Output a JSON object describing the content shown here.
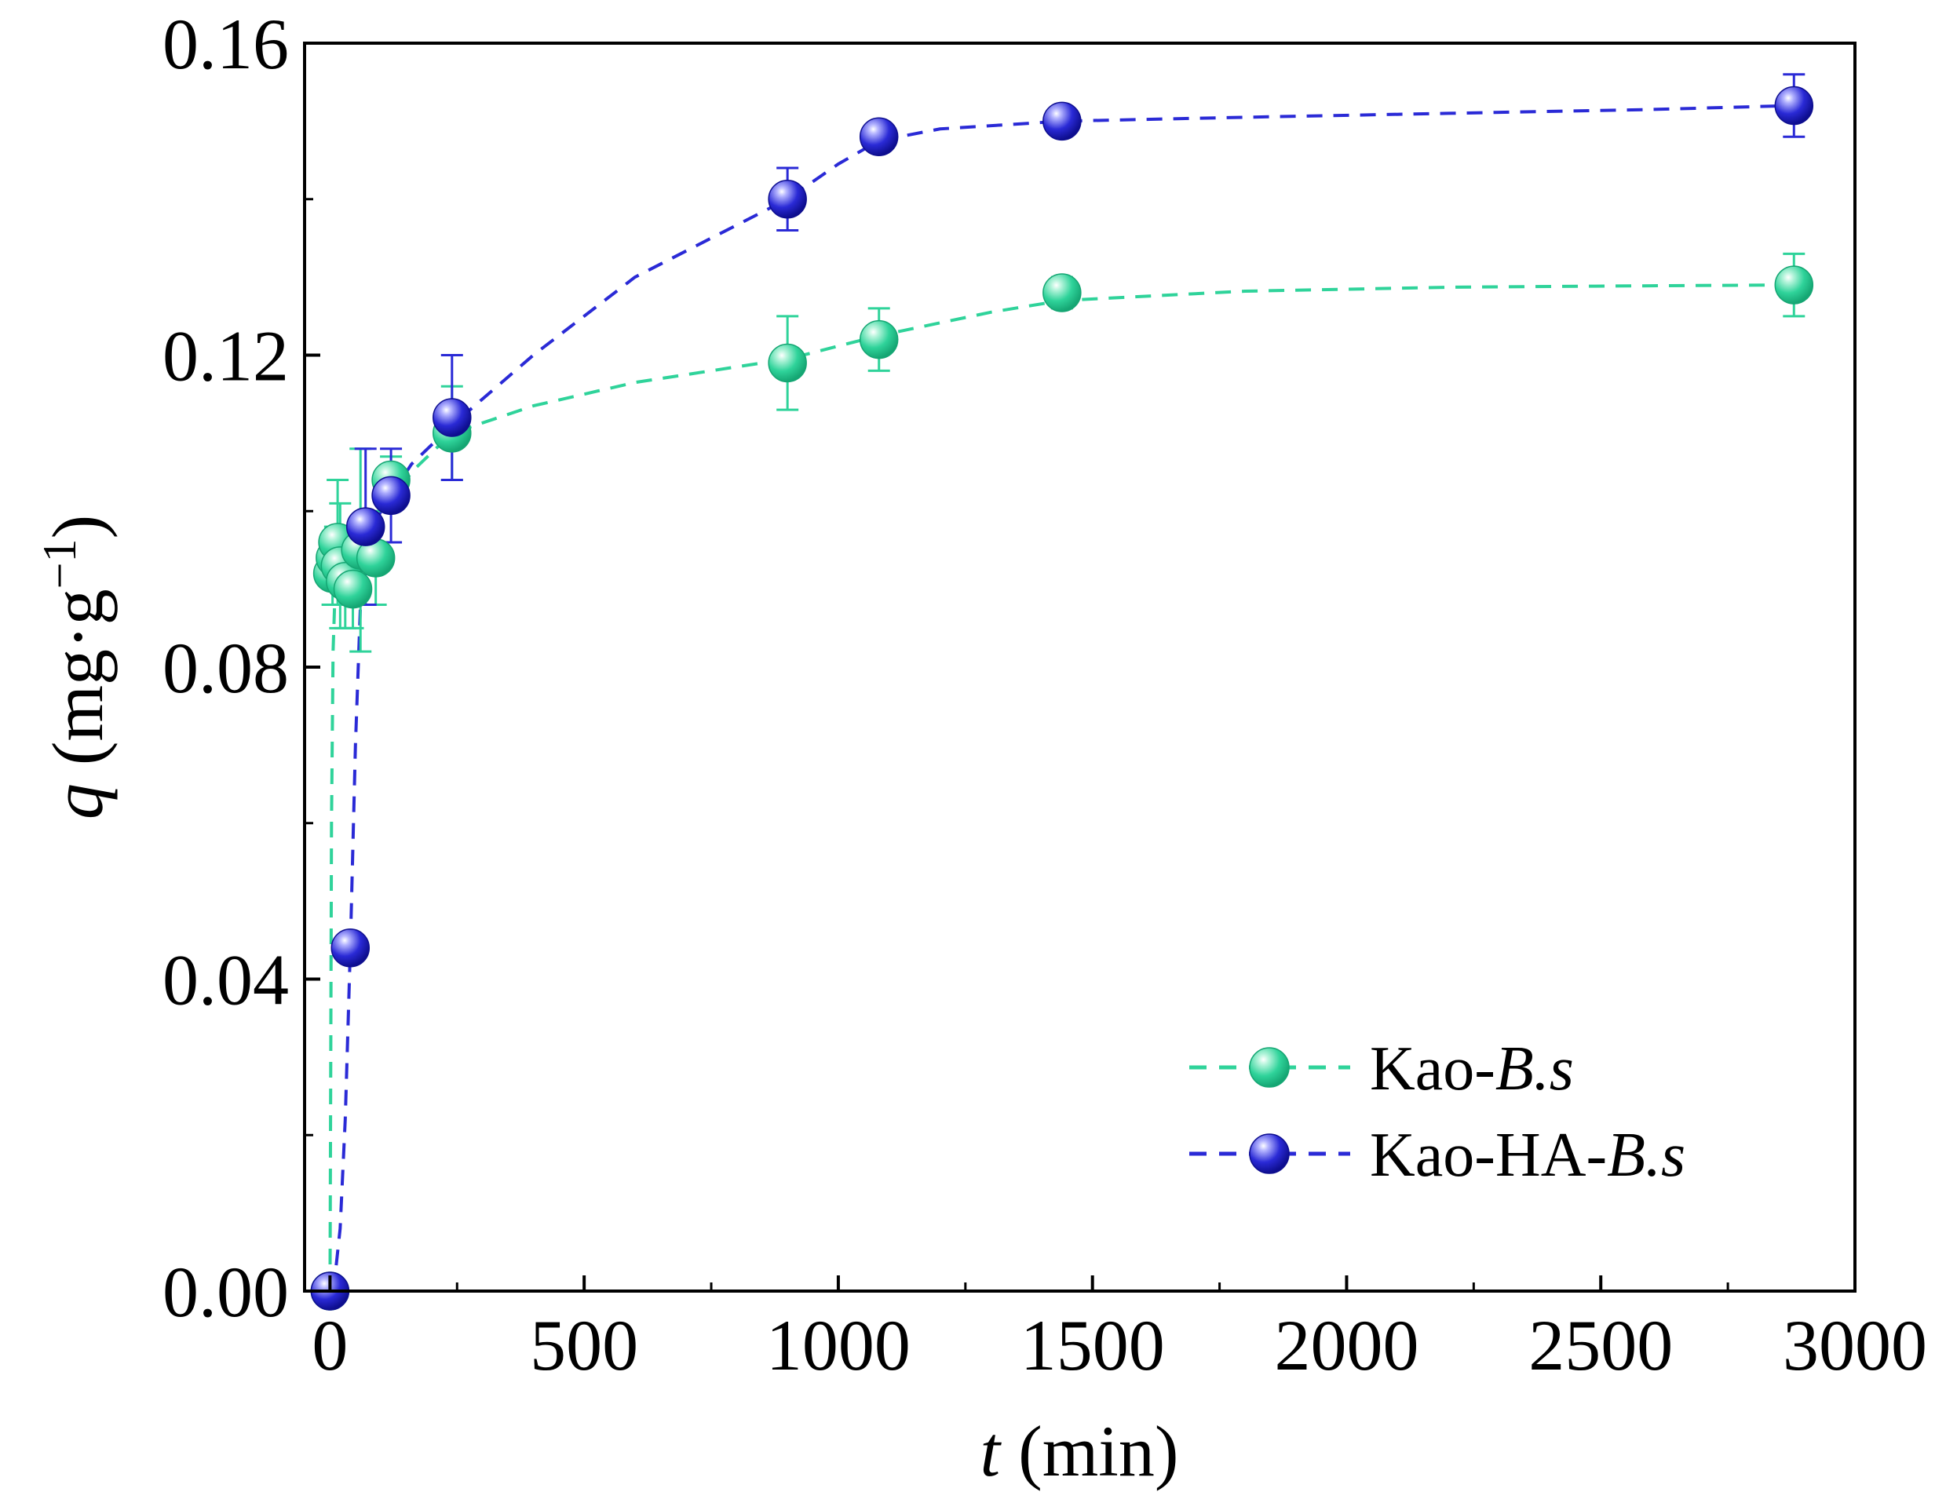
{
  "chart_data": {
    "type": "scatter",
    "xlabel_var": "t",
    "xlabel_unit": " (min)",
    "ylabel_var": "q",
    "ylabel_unit": " (mg·g",
    "ylabel_sup": "−1",
    "ylabel_close": ")",
    "xlim": [
      -50,
      3000
    ],
    "ylim": [
      0,
      0.16
    ],
    "xticks": [
      0,
      500,
      1000,
      1500,
      2000,
      2500,
      3000
    ],
    "xtick_labels": [
      "0",
      "500",
      "1000",
      "1500",
      "2000",
      "2500",
      "3000"
    ],
    "yticks": [
      0,
      0.04,
      0.08,
      0.12,
      0.16
    ],
    "ytick_labels": [
      "0.00",
      "0.04",
      "0.08",
      "0.12",
      "0.16"
    ],
    "legend_position": "bottom-right",
    "series": [
      {
        "name_prefix": "Kao-",
        "name_italic": "B.s",
        "color": "#2fd39a",
        "highlight": "#b9f5dd",
        "shade": "#15a673",
        "x": [
          0,
          5,
          10,
          15,
          20,
          30,
          45,
          60,
          90,
          120,
          240,
          900,
          1080,
          1440,
          2880
        ],
        "y": [
          0.0,
          0.092,
          0.094,
          0.096,
          0.093,
          0.091,
          0.09,
          0.095,
          0.094,
          0.104,
          0.11,
          0.119,
          0.122,
          0.128,
          0.129
        ],
        "err": [
          0,
          0.004,
          0.004,
          0.008,
          0.008,
          0.006,
          0.005,
          0.013,
          0.006,
          0.003,
          0.006,
          0.006,
          0.004,
          0.002,
          0.004
        ],
        "fit_x": [
          0,
          3,
          6,
          10,
          15,
          20,
          30,
          45,
          60,
          90,
          120,
          160,
          240,
          400,
          600,
          900,
          1080,
          1300,
          1440,
          1800,
          2200,
          2600,
          2880
        ],
        "fit_y": [
          0.0,
          0.06,
          0.082,
          0.09,
          0.092,
          0.093,
          0.0935,
          0.094,
          0.0945,
          0.097,
          0.101,
          0.105,
          0.11,
          0.1135,
          0.1165,
          0.1195,
          0.1225,
          0.1255,
          0.127,
          0.1282,
          0.1287,
          0.1289,
          0.129
        ]
      },
      {
        "name_prefix": "Kao-HA-",
        "name_italic": "B.s",
        "color": "#2a2ad6",
        "highlight": "#b4b4ff",
        "shade": "#0e0e8f",
        "x": [
          0,
          40,
          70,
          120,
          240,
          900,
          1080,
          1440,
          2880
        ],
        "y": [
          0.0,
          0.044,
          0.098,
          0.102,
          0.112,
          0.14,
          0.148,
          0.15,
          0.152
        ],
        "err": [
          0,
          0.0,
          0.01,
          0.006,
          0.008,
          0.004,
          0.0,
          0.0,
          0.004
        ],
        "fit_x": [
          0,
          10,
          20,
          30,
          40,
          50,
          60,
          70,
          80,
          100,
          120,
          160,
          240,
          400,
          600,
          900,
          1000,
          1080,
          1200,
          1440,
          1800,
          2200,
          2600,
          2880
        ],
        "fit_y": [
          0.0,
          0.002,
          0.008,
          0.022,
          0.044,
          0.07,
          0.088,
          0.095,
          0.097,
          0.1,
          0.102,
          0.106,
          0.111,
          0.12,
          0.13,
          0.14,
          0.1445,
          0.1475,
          0.149,
          0.15,
          0.1505,
          0.151,
          0.1515,
          0.152
        ]
      }
    ]
  }
}
